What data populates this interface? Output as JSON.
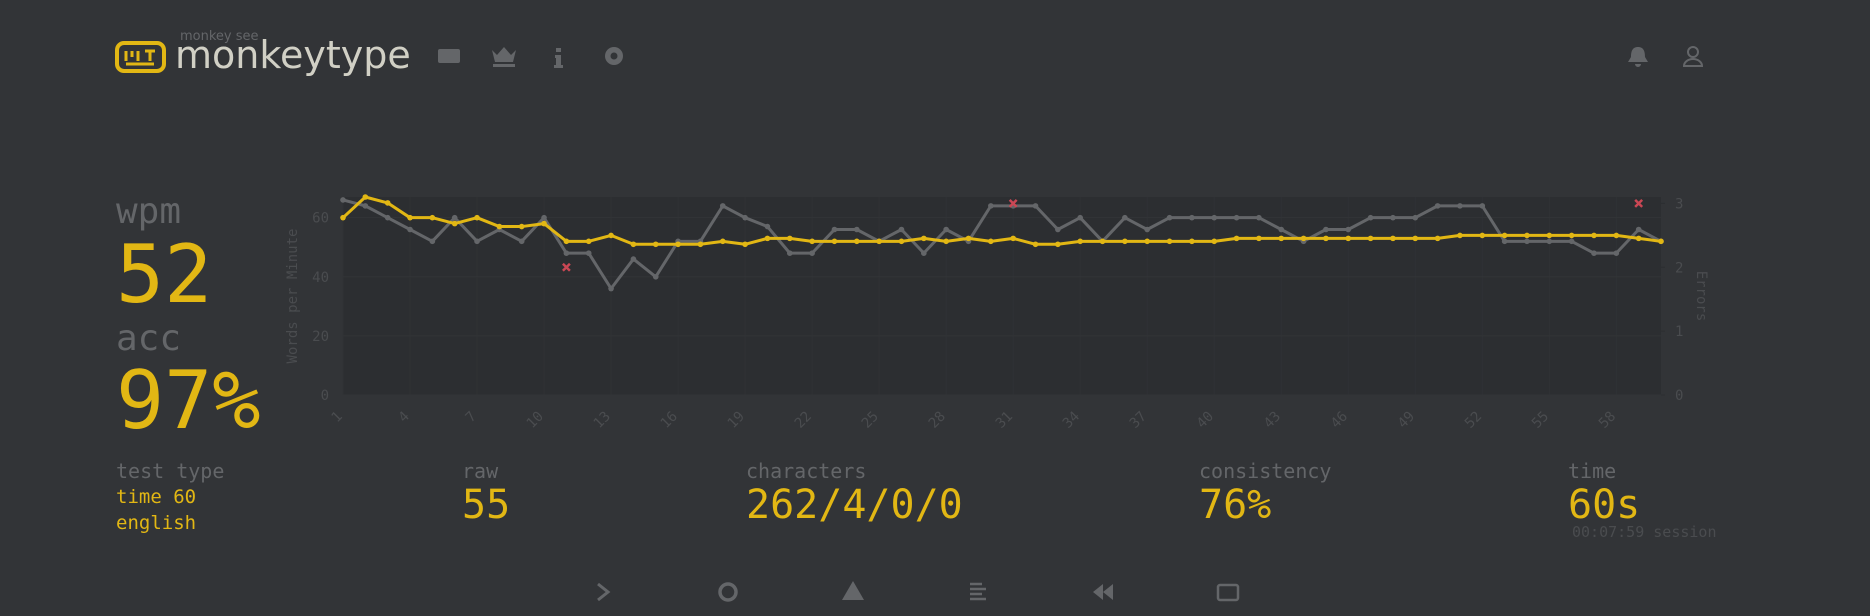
{
  "header": {
    "tagline": "monkey see",
    "logo": "monkeytype"
  },
  "stats": {
    "wpm_label": "wpm",
    "wpm": "52",
    "acc_label": "acc",
    "acc": "97%",
    "test_type_label": "test type",
    "test_type": "time 60",
    "language": "english",
    "raw_label": "raw",
    "raw": "55",
    "characters_label": "characters",
    "characters": "262/4/0/0",
    "consistency_label": "consistency",
    "consistency": "76%",
    "time_label": "time",
    "time": "60s",
    "session": "00:07:59 session"
  },
  "chart_data": {
    "type": "line",
    "y_label": "Words per Minute",
    "y2_label": "Errors",
    "x": [
      1,
      2,
      3,
      4,
      5,
      6,
      7,
      8,
      9,
      10,
      11,
      12,
      13,
      14,
      15,
      16,
      17,
      18,
      19,
      20,
      21,
      22,
      23,
      24,
      25,
      26,
      27,
      28,
      29,
      30,
      31,
      32,
      33,
      34,
      35,
      36,
      37,
      38,
      39,
      40,
      41,
      42,
      43,
      44,
      45,
      46,
      47,
      48,
      49,
      50,
      51,
      52,
      53,
      54,
      55,
      56,
      57,
      58,
      59,
      60
    ],
    "xlim": [
      1,
      60
    ],
    "xticks": [
      1,
      4,
      7,
      10,
      13,
      16,
      19,
      22,
      25,
      28,
      31,
      34,
      37,
      40,
      43,
      46,
      49,
      52,
      55,
      58
    ],
    "ylim": [
      0,
      67
    ],
    "yticks": [
      0,
      20,
      40,
      60
    ],
    "y2lim": [
      0,
      3.1
    ],
    "y2ticks": [
      0,
      1,
      2,
      3
    ],
    "grid": true,
    "series": [
      {
        "color": "#646669",
        "values": [
          66,
          64,
          60,
          56,
          52,
          60,
          52,
          56,
          52,
          60,
          48,
          48,
          36,
          46,
          40,
          52,
          52,
          64,
          60,
          57,
          48,
          48,
          56,
          56,
          52,
          56,
          48,
          56,
          52,
          64,
          64,
          64,
          56,
          60,
          52,
          60,
          56,
          60,
          60,
          60,
          60,
          60,
          56,
          52,
          56,
          56,
          60,
          60,
          60,
          64,
          64,
          64,
          52,
          52,
          52,
          52,
          48,
          48,
          56,
          52
        ]
      },
      {
        "color": "#e2b714",
        "values": [
          60,
          67,
          65,
          60,
          60,
          58,
          60,
          57,
          57,
          58,
          52,
          52,
          54,
          51,
          51,
          51,
          51,
          52,
          51,
          53,
          53,
          52,
          52,
          52,
          52,
          52,
          53,
          52,
          53,
          52,
          53,
          51,
          51,
          52,
          52,
          52,
          52,
          52,
          52,
          52,
          53,
          53,
          53,
          53,
          53,
          53,
          53,
          53,
          53,
          53,
          54,
          54,
          54,
          54,
          54,
          54,
          54,
          54,
          53,
          52
        ]
      },
      {
        "type": "scatter",
        "axis": "y2",
        "color": "#ca4754",
        "x": [
          11,
          31,
          59
        ],
        "values": [
          2,
          3,
          3
        ]
      }
    ]
  }
}
